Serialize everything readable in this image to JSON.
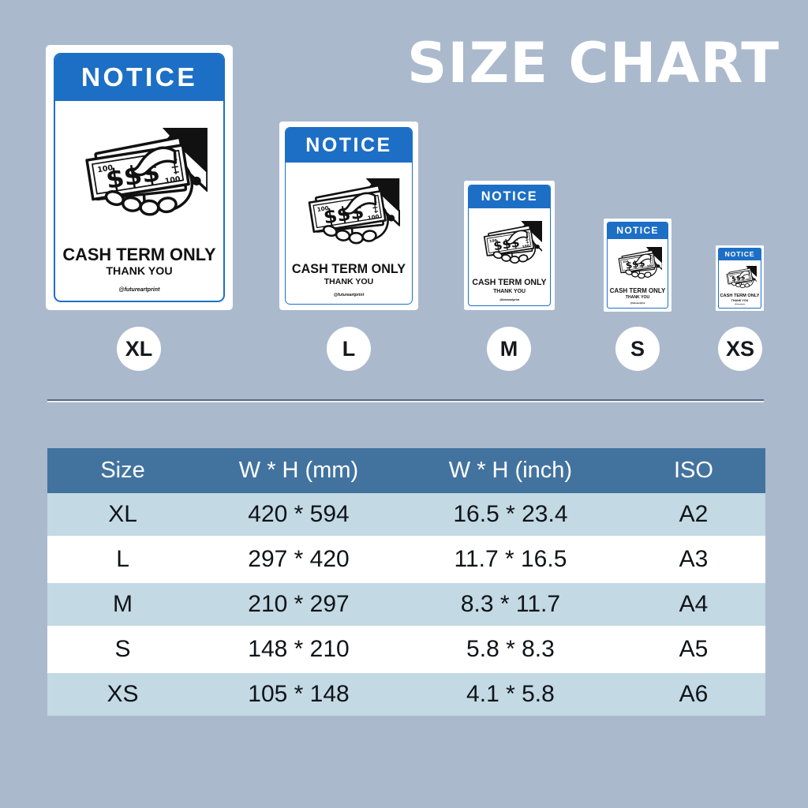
{
  "title": "SIZE CHART",
  "sign": {
    "header": "NOTICE",
    "line1": "CASH TERM ONLY",
    "line2": "THANK YOU",
    "credit": "@futureartprint",
    "illustration": "hand-giving-cash-icon"
  },
  "sizes": [
    "XL",
    "L",
    "M",
    "S",
    "XS"
  ],
  "colors": {
    "background": "#abb9cd",
    "sign_blue": "#1d6fc5",
    "table_header_blue": "#42739f",
    "table_row_alt_blue": "#c3d9e4",
    "title_white": "#ffffff",
    "text_dark": "#101418"
  },
  "table": {
    "columns": [
      "Size",
      "W * H (mm)",
      "W * H (inch)",
      "ISO"
    ],
    "rows": [
      [
        "XL",
        "420 * 594",
        "16.5 * 23.4",
        "A2"
      ],
      [
        "L",
        "297 * 420",
        "11.7 * 16.5",
        "A3"
      ],
      [
        "M",
        "210 * 297",
        "8.3 * 11.7",
        "A4"
      ],
      [
        "S",
        "148 * 210",
        "5.8 * 8.3",
        "A5"
      ],
      [
        "XS",
        "105 * 148",
        "4.1 * 5.8",
        "A6"
      ]
    ]
  }
}
